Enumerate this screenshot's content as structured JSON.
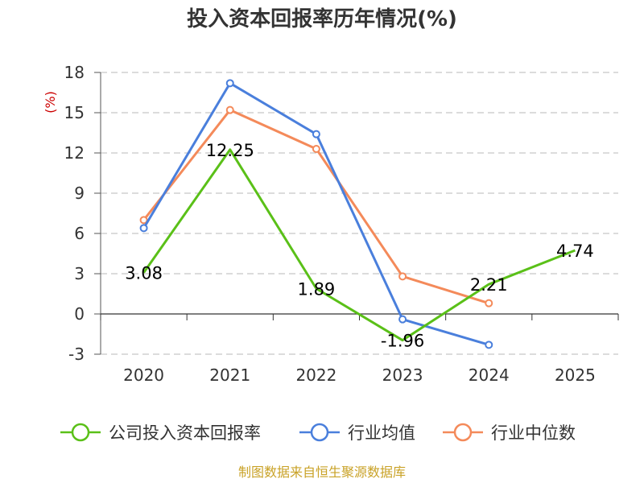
{
  "chart_data": {
    "type": "line",
    "title": "投入资本回报率历年情况(%)",
    "unit_label": "(%)",
    "categories": [
      "2020",
      "2021",
      "2022",
      "2023",
      "2024",
      "2025"
    ],
    "ylim": [
      -3,
      18
    ],
    "yticks": [
      "18",
      "15",
      "12",
      "9",
      "6",
      "3",
      "0",
      "-3"
    ],
    "grid": true,
    "legend_position": "bottom",
    "series": [
      {
        "name": "公司投入资本回报率",
        "color": "#5ac018",
        "values": [
          3.08,
          12.25,
          1.89,
          -1.96,
          2.21,
          4.74
        ],
        "labels": [
          "3.08",
          "12.25",
          "1.89",
          "-1.96",
          "2.21",
          "4.74"
        ]
      },
      {
        "name": "行业均值",
        "color": "#4a7fdc",
        "values": [
          6.4,
          17.2,
          13.4,
          -0.4,
          -2.3,
          null
        ]
      },
      {
        "name": "行业中位数",
        "color": "#f48a5a",
        "values": [
          7.0,
          15.2,
          12.3,
          2.8,
          0.8,
          null
        ]
      }
    ]
  },
  "source_text": "制图数据来自恒生聚源数据库"
}
